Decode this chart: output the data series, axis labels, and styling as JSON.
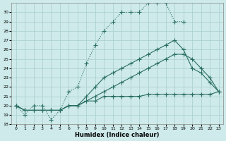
{
  "xlabel": "Humidex (Indice chaleur)",
  "bg_color": "#ceeaea",
  "grid_color": "#a8cccc",
  "line_color": "#2a6e62",
  "xlim": [
    -0.5,
    23.5
  ],
  "ylim": [
    18,
    31
  ],
  "yticks": [
    18,
    19,
    20,
    21,
    22,
    23,
    24,
    25,
    26,
    27,
    28,
    29,
    30
  ],
  "xticks": [
    0,
    1,
    2,
    3,
    4,
    5,
    6,
    7,
    8,
    9,
    10,
    11,
    12,
    13,
    14,
    15,
    16,
    17,
    18,
    19,
    20,
    21,
    22,
    23
  ],
  "curve1_x": [
    0,
    1,
    2,
    3,
    4,
    5,
    6,
    7,
    8,
    9,
    10,
    11,
    12,
    13,
    14,
    15,
    16,
    17,
    18,
    19
  ],
  "curve1_y": [
    20,
    19,
    20,
    20,
    18.5,
    19.5,
    21.5,
    22,
    24.5,
    26.5,
    28,
    29,
    30,
    30,
    30,
    31,
    31,
    31,
    29,
    29
  ],
  "curve1_dotted": true,
  "curve2_x": [
    0,
    1,
    2,
    3,
    4,
    5,
    6,
    7,
    8,
    9,
    10,
    11,
    12,
    13,
    14,
    15,
    16,
    17,
    18,
    19,
    20,
    21,
    22,
    23
  ],
  "curve2_y": [
    20,
    19.5,
    19.5,
    19.5,
    19.5,
    19.5,
    20,
    20,
    20.5,
    20.5,
    21,
    21,
    21,
    21,
    21,
    21.2,
    21.2,
    21.2,
    21.2,
    21.2,
    21.2,
    21.2,
    21.2,
    21.5
  ],
  "curve3_x": [
    0,
    1,
    2,
    3,
    4,
    5,
    6,
    7,
    8,
    9,
    10,
    11,
    12,
    13,
    14,
    15,
    16,
    17,
    18,
    19,
    20,
    21,
    22,
    23
  ],
  "curve3_y": [
    20,
    19.5,
    19.5,
    19.5,
    19.5,
    19.5,
    20,
    20,
    20.5,
    21,
    21.5,
    22,
    22.5,
    23,
    23.5,
    24,
    24.5,
    25,
    25.5,
    25.5,
    25,
    24,
    23,
    21.5
  ],
  "curve4_x": [
    0,
    1,
    2,
    3,
    4,
    5,
    6,
    7,
    8,
    9,
    10,
    11,
    12,
    13,
    14,
    15,
    16,
    17,
    18,
    19,
    20,
    21,
    22,
    23
  ],
  "curve4_y": [
    20,
    19.5,
    19.5,
    19.5,
    19.5,
    19.5,
    20,
    20,
    21,
    22,
    23,
    23.5,
    24,
    24.5,
    25,
    25.5,
    26,
    26.5,
    27,
    26,
    24,
    23.5,
    22.5,
    21.5
  ]
}
